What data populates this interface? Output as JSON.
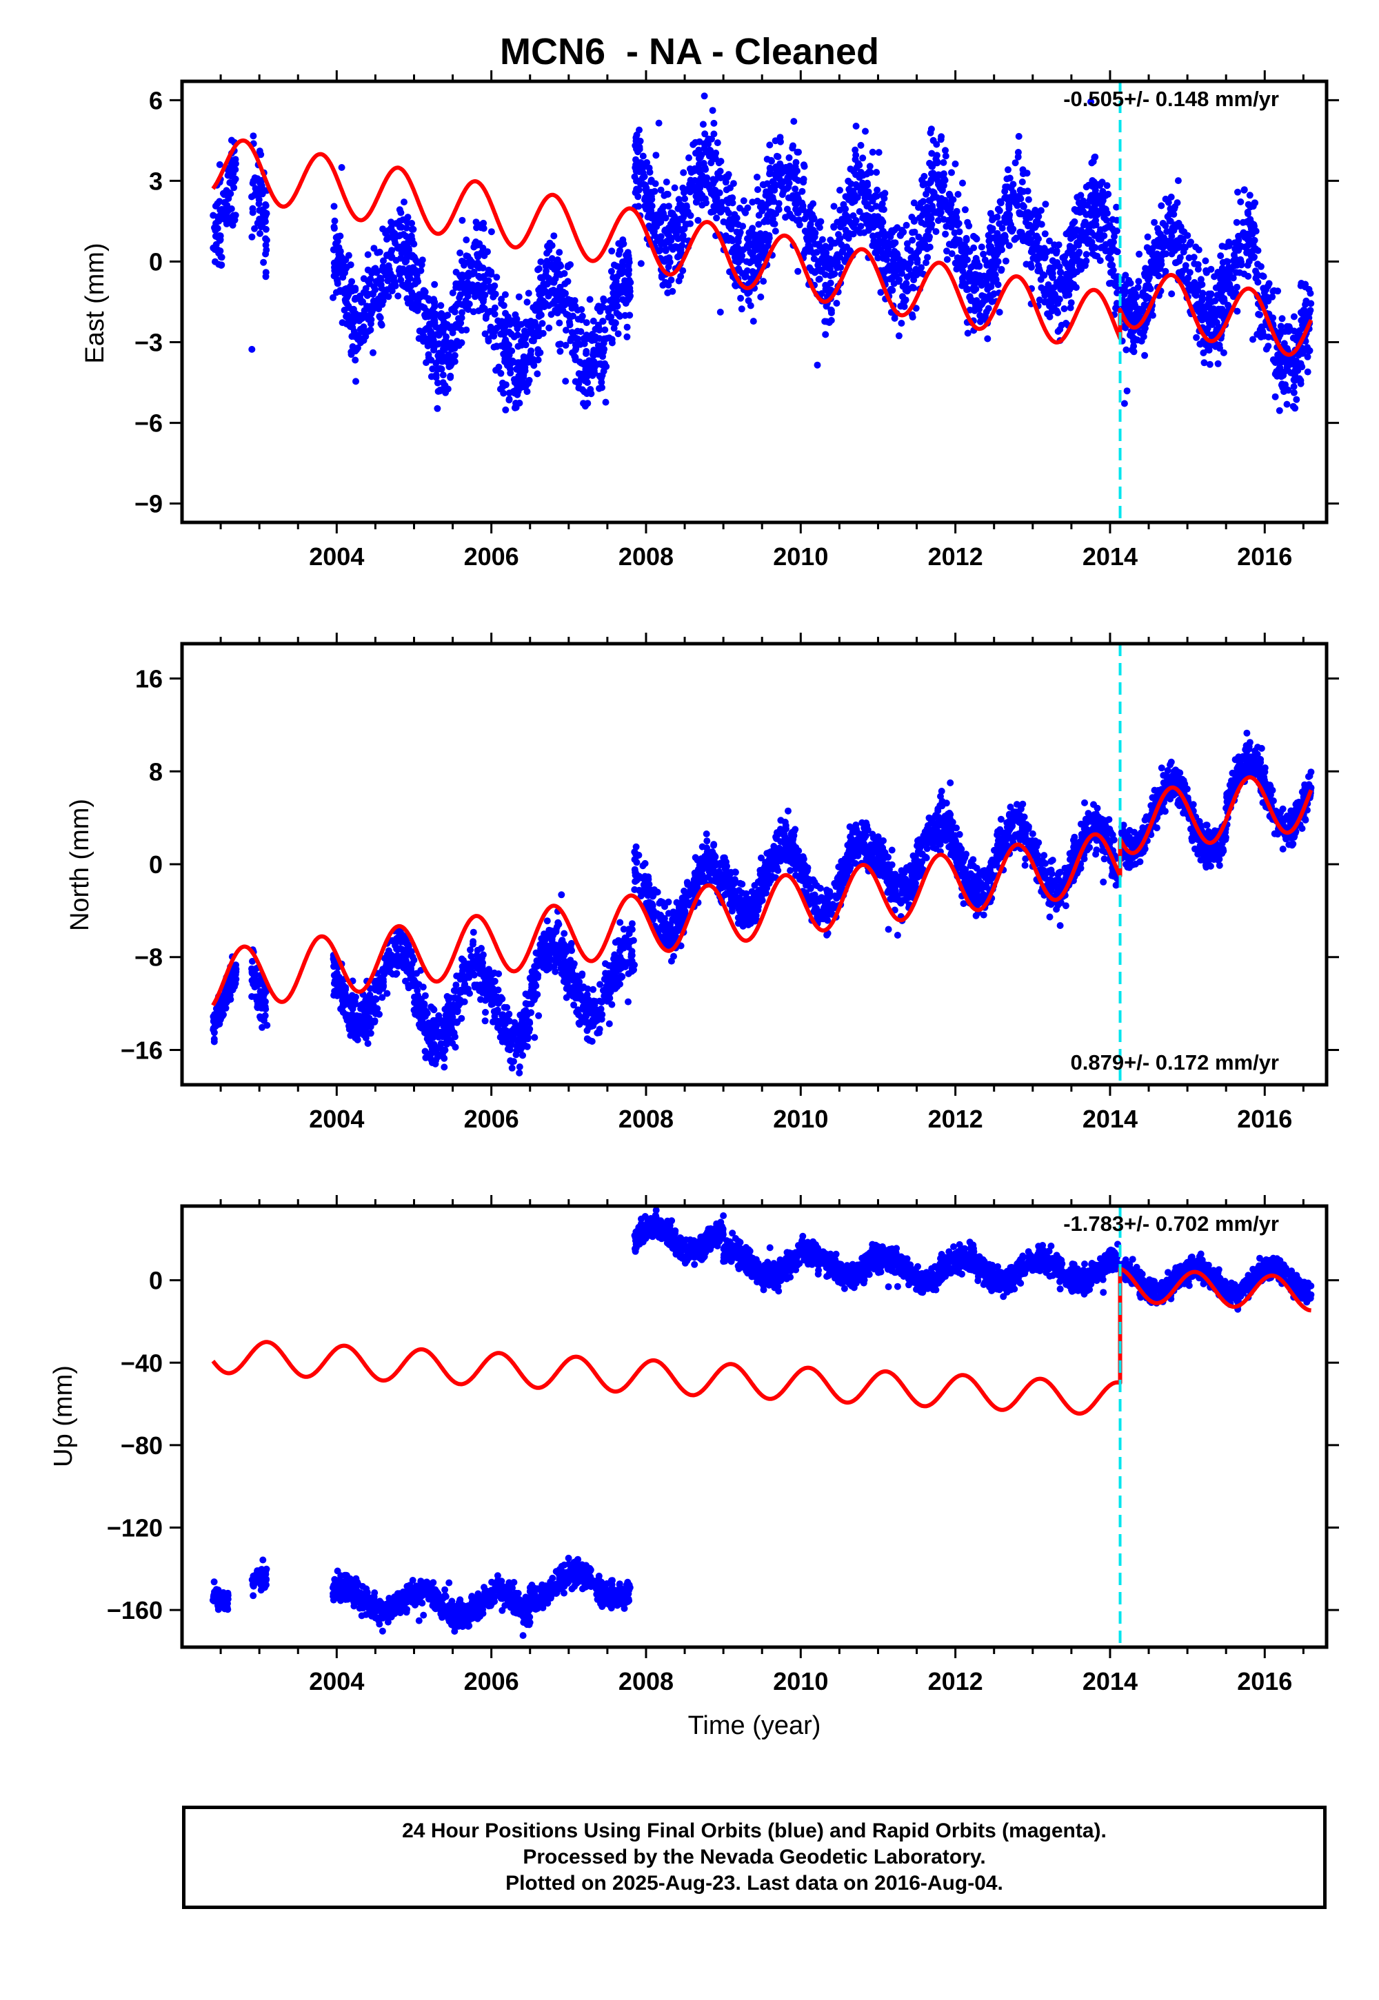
{
  "title": "MCN6  - NA - Cleaned",
  "footer": {
    "line1": "24 Hour Positions Using Final Orbits (blue) and Rapid Orbits (magenta).",
    "line2": "Processed by the Nevada Geodetic Laboratory.",
    "line3": "Plotted on 2025-Aug-23. Last data on 2016-Aug-04."
  },
  "colors": {
    "observations": "#0000ff",
    "model": "#ff0000",
    "offset_marker": "#00e5ee"
  },
  "chart_data": [
    {
      "type": "scatter",
      "panel": "east",
      "ylabel": "East (mm)",
      "xlabel": "",
      "xlim": [
        2002.0,
        2016.8
      ],
      "ylim": [
        -9.7,
        6.7
      ],
      "yticks": [
        6,
        3,
        0,
        -3,
        -6,
        -9
      ],
      "ytick_labels": [
        "6",
        "3",
        "0",
        "−3",
        "−6",
        "−9"
      ],
      "xticks": [
        2004,
        2006,
        2008,
        2010,
        2012,
        2014,
        2016
      ],
      "xtick_labels": [
        "2004",
        "2006",
        "2008",
        "2010",
        "2012",
        "2014",
        "2016"
      ],
      "rate_label": "-0.505+/- 0.148 mm/yr",
      "rate_position": "top-right",
      "offset_epoch": 2014.13,
      "grid": false,
      "series": [
        {
          "role": "observations",
          "data_segments": [
            {
              "start": 2002.4,
              "end": 2002.7,
              "value": 2.0,
              "spread": 1.6
            },
            {
              "start": 2002.9,
              "end": 2003.1,
              "value": 1.8,
              "spread": 1.6
            },
            {
              "start": 2003.95,
              "end": 2004.5,
              "value": -0.5,
              "spread": 1.5
            },
            {
              "start": 2004.5,
              "end": 2005.3,
              "value": -1.2,
              "spread": 1.6
            },
            {
              "start": 2005.3,
              "end": 2006.3,
              "value": -2.0,
              "spread": 1.7
            },
            {
              "start": 2006.3,
              "end": 2007.3,
              "value": -2.4,
              "spread": 1.6
            },
            {
              "start": 2007.3,
              "end": 2007.8,
              "value": -2.0,
              "spread": 1.6
            },
            {
              "start": 2007.85,
              "end": 2008.9,
              "value": 2.2,
              "spread": 1.6
            },
            {
              "start": 2008.9,
              "end": 2010.3,
              "value": 1.6,
              "spread": 1.7
            },
            {
              "start": 2010.3,
              "end": 2012.0,
              "value": 1.0,
              "spread": 1.8
            },
            {
              "start": 2012.0,
              "end": 2013.6,
              "value": 0.6,
              "spread": 1.7
            },
            {
              "start": 2013.6,
              "end": 2014.1,
              "value": 0.4,
              "spread": 1.6
            },
            {
              "start": 2014.15,
              "end": 2015.0,
              "value": -0.5,
              "spread": 1.4
            },
            {
              "start": 2015.0,
              "end": 2015.9,
              "value": -0.6,
              "spread": 1.6
            },
            {
              "start": 2015.9,
              "end": 2016.6,
              "value": -2.3,
              "spread": 1.5
            }
          ],
          "annual_amplitude": 1.6,
          "annual_phase": 0.55
        },
        {
          "role": "model",
          "pre_offset": {
            "start": 2002.4,
            "intercept_2002": 3.8,
            "rate": -0.505,
            "annual_amplitude": 1.1,
            "annual_phase": 0.55
          },
          "post_offset": {
            "end": 2016.6,
            "intercept_2014": -1.2,
            "rate": -0.505,
            "annual_amplitude": 1.1,
            "annual_phase": 0.55
          }
        }
      ]
    },
    {
      "type": "scatter",
      "panel": "north",
      "ylabel": "North (mm)",
      "xlabel": "",
      "xlim": [
        2002.0,
        2016.8
      ],
      "ylim": [
        -19.0,
        19.0
      ],
      "yticks": [
        16,
        8,
        0,
        -8,
        -16
      ],
      "ytick_labels": [
        "16",
        "8",
        "0",
        "−8",
        "−16"
      ],
      "xticks": [
        2004,
        2006,
        2008,
        2010,
        2012,
        2014,
        2016
      ],
      "xtick_labels": [
        "2004",
        "2006",
        "2008",
        "2010",
        "2012",
        "2014",
        "2016"
      ],
      "rate_label": "0.879+/- 0.172 mm/yr",
      "rate_position": "bottom-right",
      "offset_epoch": 2014.13,
      "grid": false,
      "series": [
        {
          "role": "observations",
          "data_segments": [
            {
              "start": 2002.4,
              "end": 2002.7,
              "value": -11.5,
              "spread": 1.5
            },
            {
              "start": 2002.9,
              "end": 2003.1,
              "value": -12.0,
              "spread": 2.0
            },
            {
              "start": 2003.95,
              "end": 2005.0,
              "value": -10.5,
              "spread": 2.0
            },
            {
              "start": 2005.0,
              "end": 2006.5,
              "value": -12.0,
              "spread": 2.2
            },
            {
              "start": 2006.5,
              "end": 2007.85,
              "value": -10.0,
              "spread": 2.0
            },
            {
              "start": 2007.85,
              "end": 2009.0,
              "value": -3.0,
              "spread": 1.8
            },
            {
              "start": 2009.0,
              "end": 2011.0,
              "value": -1.0,
              "spread": 1.8
            },
            {
              "start": 2011.0,
              "end": 2014.1,
              "value": 0.5,
              "spread": 1.8
            },
            {
              "start": 2014.15,
              "end": 2015.5,
              "value": 4.0,
              "spread": 1.5
            },
            {
              "start": 2015.5,
              "end": 2016.6,
              "value": 6.0,
              "spread": 1.6
            }
          ],
          "annual_amplitude": 3.0,
          "annual_phase": 0.55
        },
        {
          "role": "model",
          "pre_offset": {
            "start": 2002.4,
            "intercept_2002": -10.4,
            "rate": 0.879,
            "annual_amplitude": 2.6,
            "annual_phase": 0.55
          },
          "post_offset": {
            "end": 2016.6,
            "intercept_2014": 3.3,
            "rate": 0.879,
            "annual_amplitude": 2.6,
            "annual_phase": 0.55
          }
        }
      ]
    },
    {
      "type": "scatter",
      "panel": "up",
      "ylabel": "Up (mm)",
      "xlabel": "Time (year)",
      "xlim": [
        2002.0,
        2016.8
      ],
      "ylim": [
        -178.0,
        36.0
      ],
      "yticks": [
        0,
        -40,
        -80,
        -120,
        -160
      ],
      "ytick_labels": [
        "0",
        "−40",
        "−80",
        "−120",
        "−160"
      ],
      "xticks": [
        2004,
        2006,
        2008,
        2010,
        2012,
        2014,
        2016
      ],
      "xtick_labels": [
        "2004",
        "2006",
        "2008",
        "2010",
        "2012",
        "2014",
        "2016"
      ],
      "rate_label": "-1.783+/- 0.702 mm/yr",
      "rate_position": "top-right",
      "offset_epoch": 2014.13,
      "grid": false,
      "series": [
        {
          "role": "observations",
          "data_segments": [
            {
              "start": 2002.4,
              "end": 2002.6,
              "value": -150.0,
              "spread": 5.0
            },
            {
              "start": 2002.9,
              "end": 2003.1,
              "value": -149.0,
              "spread": 5.0
            },
            {
              "start": 2003.95,
              "end": 2005.0,
              "value": -155.0,
              "spread": 5.5
            },
            {
              "start": 2005.0,
              "end": 2006.5,
              "value": -157.0,
              "spread": 5.5
            },
            {
              "start": 2006.5,
              "end": 2007.8,
              "value": -148.0,
              "spread": 5.5
            },
            {
              "start": 2007.85,
              "end": 2009.0,
              "value": 20.0,
              "spread": 5.5
            },
            {
              "start": 2009.0,
              "end": 2011.0,
              "value": 8.0,
              "spread": 5.5
            },
            {
              "start": 2011.0,
              "end": 2014.1,
              "value": 5.0,
              "spread": 5.5
            },
            {
              "start": 2014.15,
              "end": 2016.6,
              "value": 0.0,
              "spread": 5.0
            }
          ],
          "annual_amplitude": 6.0,
          "annual_phase": 0.85
        },
        {
          "role": "model",
          "pre_offset": {
            "start": 2002.4,
            "intercept_2002": -36.0,
            "rate": -1.783,
            "annual_amplitude": 8.0,
            "annual_phase": 0.85
          },
          "post_offset": {
            "end": 2016.6,
            "intercept_2014": -2.0,
            "rate": -1.783,
            "annual_amplitude": 8.0,
            "annual_phase": 0.85
          }
        }
      ]
    }
  ]
}
